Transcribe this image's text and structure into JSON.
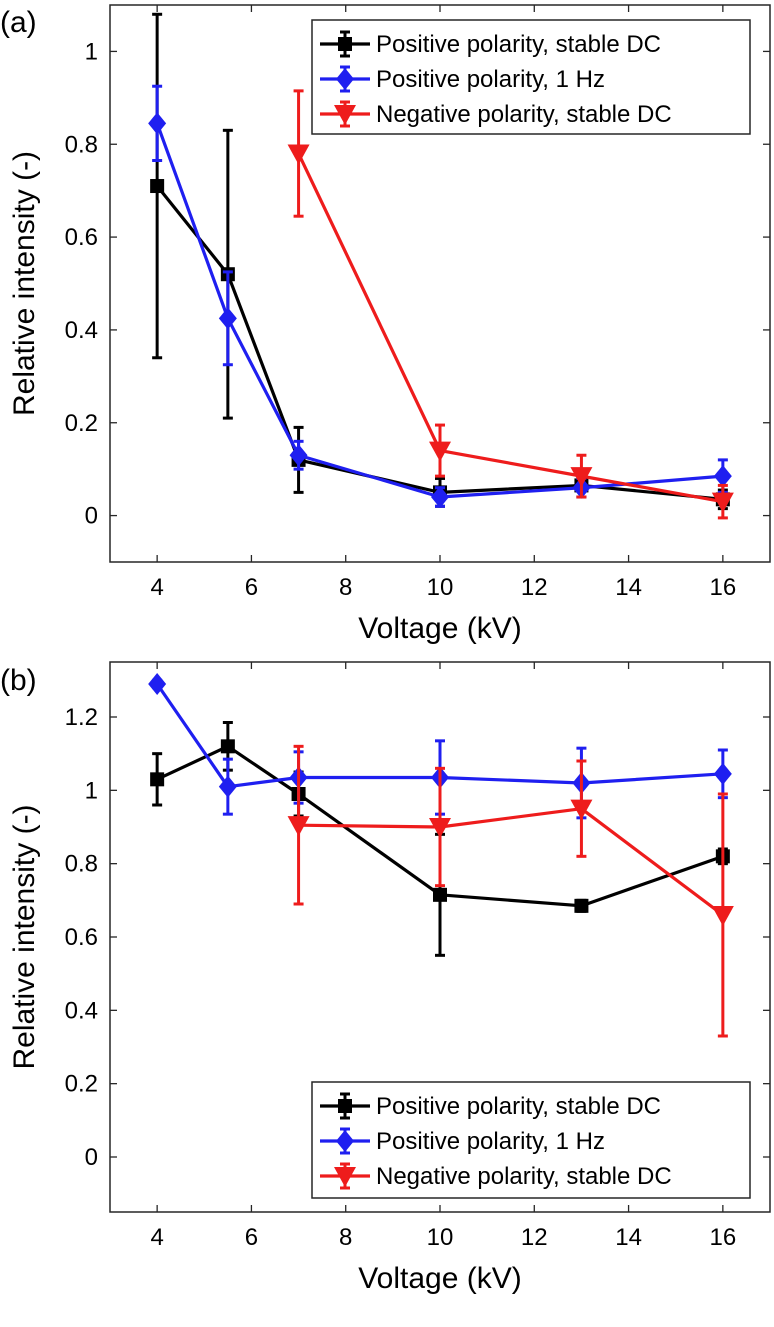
{
  "chart_data": [
    {
      "panel_label": "(a)",
      "type": "line",
      "xlabel": "Voltage (kV)",
      "ylabel": "Relative intensity (-)",
      "xlim": [
        3,
        17
      ],
      "ylim": [
        -0.1,
        1.1
      ],
      "xticks": [
        4,
        6,
        8,
        10,
        12,
        14,
        16
      ],
      "yticks": [
        0,
        0.2,
        0.4,
        0.6,
        0.8,
        1
      ],
      "xtick_labels": [
        "4",
        "6",
        "8",
        "10",
        "12",
        "14",
        "16"
      ],
      "ytick_labels": [
        "0",
        "0.2",
        "0.4",
        "0.6",
        "0.8",
        "1"
      ],
      "legend_position": "top-right",
      "series": [
        {
          "name": "Positive polarity, stable DC",
          "color": "#000000",
          "marker": "square",
          "x": [
            4,
            5.5,
            7,
            10,
            13,
            16
          ],
          "y": [
            0.71,
            0.52,
            0.12,
            0.05,
            0.065,
            0.035
          ],
          "err": [
            0.37,
            0.31,
            0.07,
            0.03,
            0.025,
            0.02
          ]
        },
        {
          "name": "Positive polarity, 1 Hz",
          "color": "#1f1ff0",
          "marker": "diamond",
          "x": [
            4,
            5.5,
            7,
            10,
            13,
            16
          ],
          "y": [
            0.845,
            0.425,
            0.13,
            0.04,
            0.06,
            0.085
          ],
          "err": [
            0.08,
            0.1,
            0.03,
            0.02,
            0.02,
            0.035
          ]
        },
        {
          "name": "Negative polarity, stable DC",
          "color": "#ee1c1c",
          "marker": "triangle-down",
          "x": [
            7,
            10,
            13,
            16
          ],
          "y": [
            0.78,
            0.14,
            0.085,
            0.03
          ],
          "err": [
            0.135,
            0.055,
            0.045,
            0.035
          ]
        }
      ]
    },
    {
      "panel_label": "(b)",
      "type": "line",
      "xlabel": "Voltage (kV)",
      "ylabel": "Relative intensity (-)",
      "xlim": [
        3,
        17
      ],
      "ylim": [
        -0.15,
        1.35
      ],
      "xticks": [
        4,
        6,
        8,
        10,
        12,
        14,
        16
      ],
      "yticks": [
        0,
        0.2,
        0.4,
        0.6,
        0.8,
        1,
        1.2
      ],
      "xtick_labels": [
        "4",
        "6",
        "8",
        "10",
        "12",
        "14",
        "16"
      ],
      "ytick_labels": [
        "0",
        "0.2",
        "0.4",
        "0.6",
        "0.8",
        "1",
        "1.2"
      ],
      "legend_position": "bottom-right",
      "series": [
        {
          "name": "Positive polarity, stable DC",
          "color": "#000000",
          "marker": "square",
          "x": [
            4,
            5.5,
            7,
            10,
            13,
            16
          ],
          "y": [
            1.03,
            1.12,
            0.99,
            0.715,
            0.685,
            0.82
          ],
          "err": [
            0.07,
            0.065,
            0.06,
            0.165,
            0.015,
            0.02
          ]
        },
        {
          "name": "Positive polarity, 1 Hz",
          "color": "#1f1ff0",
          "marker": "diamond",
          "x": [
            4,
            5.5,
            7,
            10,
            13,
            16
          ],
          "y": [
            1.29,
            1.01,
            1.035,
            1.035,
            1.02,
            1.045
          ],
          "err": [
            0.01,
            0.075,
            0.07,
            0.1,
            0.095,
            0.065
          ]
        },
        {
          "name": "Negative polarity, stable DC",
          "color": "#ee1c1c",
          "marker": "triangle-down",
          "x": [
            7,
            10,
            13,
            16
          ],
          "y": [
            0.905,
            0.9,
            0.95,
            0.66
          ],
          "err": [
            0.215,
            0.16,
            0.13,
            0.33
          ]
        }
      ]
    }
  ]
}
